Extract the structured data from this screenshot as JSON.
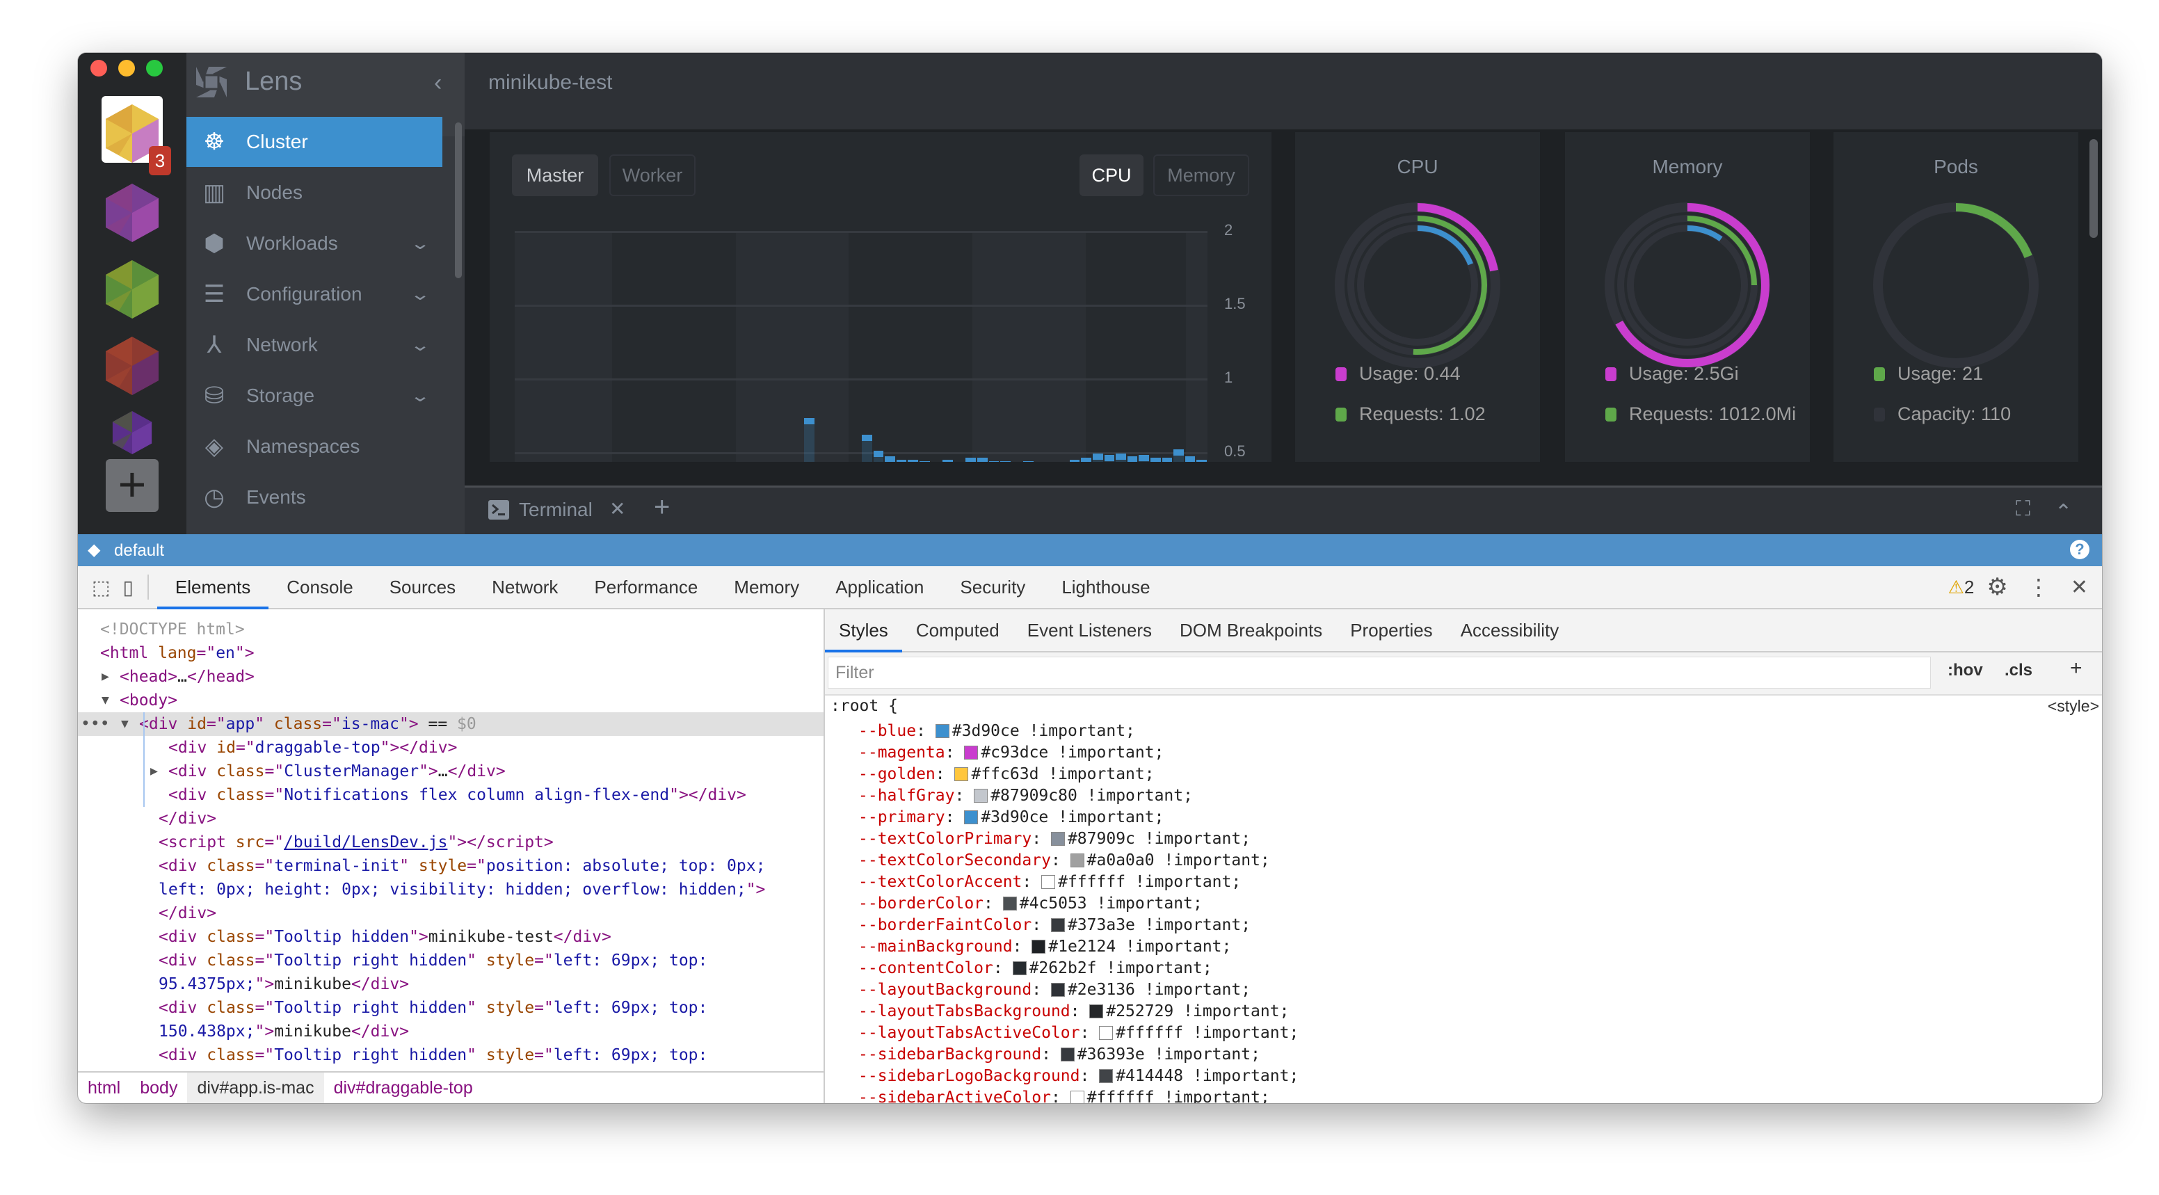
{
  "window": {
    "traffic_lights": [
      "#ff5f57",
      "#febc2e",
      "#28c840"
    ]
  },
  "clusters": {
    "badge": "3",
    "icons": [
      {
        "name": "cluster-icon-active",
        "colors": [
          "#e8c24a",
          "#c77dc2",
          "#d9a13a"
        ]
      },
      {
        "name": "cluster-icon-purple",
        "colors": [
          "#7a3f94",
          "#9c4aa8",
          "#8a3d85"
        ]
      },
      {
        "name": "cluster-icon-green",
        "colors": [
          "#5b8f3a",
          "#7aa33c",
          "#8c9a2e"
        ]
      },
      {
        "name": "cluster-icon-red",
        "colors": [
          "#8e3a30",
          "#6a2f6a",
          "#a24430"
        ]
      },
      {
        "name": "cluster-icon-violet",
        "colors": [
          "#5a2f8a",
          "#6d3aa0",
          "#4e5a3a"
        ]
      }
    ],
    "add_label": "+"
  },
  "sidebar": {
    "title": "Lens",
    "collapse": "‹",
    "items": [
      {
        "label": "Cluster",
        "icon": "helm-wheel-icon",
        "glyph": "☸",
        "active": true,
        "expandable": false
      },
      {
        "label": "Nodes",
        "icon": "nodes-icon",
        "glyph": "▥",
        "active": false,
        "expandable": false
      },
      {
        "label": "Workloads",
        "icon": "cubes-icon",
        "glyph": "⬢",
        "active": false,
        "expandable": true
      },
      {
        "label": "Configuration",
        "icon": "list-icon",
        "glyph": "☰",
        "active": false,
        "expandable": true
      },
      {
        "label": "Network",
        "icon": "network-icon",
        "glyph": "⅄",
        "active": false,
        "expandable": true
      },
      {
        "label": "Storage",
        "icon": "database-icon",
        "glyph": "⛁",
        "active": false,
        "expandable": true
      },
      {
        "label": "Namespaces",
        "icon": "layers-icon",
        "glyph": "◈",
        "active": false,
        "expandable": false
      },
      {
        "label": "Events",
        "icon": "clock-icon",
        "glyph": "◷",
        "active": false,
        "expandable": false
      }
    ]
  },
  "header": {
    "title": "minikube-test"
  },
  "chart_panel": {
    "node_tabs": [
      "Master",
      "Worker"
    ],
    "metric_tabs": [
      "CPU",
      "Memory"
    ],
    "selected_node": "Master",
    "selected_metric": "CPU"
  },
  "chart_data": {
    "type": "bar",
    "title": "",
    "xlabel": "",
    "ylabel": "",
    "y_ticks": [
      "2",
      "1.5",
      "1",
      "0.5"
    ],
    "ylim": [
      0.5,
      2
    ],
    "grid": true,
    "slots": 60,
    "points": [
      {
        "i": 25,
        "v": 0.73
      },
      {
        "i": 30,
        "v": 0.62
      },
      {
        "i": 31,
        "v": 0.51
      },
      {
        "i": 32,
        "v": 0.47
      },
      {
        "i": 33,
        "v": 0.45
      },
      {
        "i": 34,
        "v": 0.45
      },
      {
        "i": 35,
        "v": 0.44
      },
      {
        "i": 37,
        "v": 0.45
      },
      {
        "i": 39,
        "v": 0.46
      },
      {
        "i": 40,
        "v": 0.46
      },
      {
        "i": 41,
        "v": 0.44
      },
      {
        "i": 42,
        "v": 0.44
      },
      {
        "i": 44,
        "v": 0.44
      },
      {
        "i": 45,
        "v": 0.43
      },
      {
        "i": 46,
        "v": 0.43
      },
      {
        "i": 48,
        "v": 0.45
      },
      {
        "i": 49,
        "v": 0.46
      },
      {
        "i": 50,
        "v": 0.49
      },
      {
        "i": 51,
        "v": 0.48
      },
      {
        "i": 52,
        "v": 0.49
      },
      {
        "i": 53,
        "v": 0.47
      },
      {
        "i": 54,
        "v": 0.48
      },
      {
        "i": 55,
        "v": 0.46
      },
      {
        "i": 56,
        "v": 0.46
      },
      {
        "i": 57,
        "v": 0.52
      },
      {
        "i": 58,
        "v": 0.47
      },
      {
        "i": 59,
        "v": 0.45
      }
    ],
    "color": "#3d90ce"
  },
  "cards": [
    {
      "title": "CPU",
      "rings": [
        {
          "color": "#c93dce",
          "fraction": 0.22
        },
        {
          "color": "#5fa84a",
          "fraction": 0.51
        },
        {
          "color": "#3d90ce",
          "fraction": 0.19
        }
      ],
      "legend": [
        {
          "label": "Usage: 0.44",
          "color": "#c93dce"
        },
        {
          "label": "Requests: 1.02",
          "color": "#5fa84a"
        }
      ]
    },
    {
      "title": "Memory",
      "rings": [
        {
          "color": "#c93dce",
          "fraction": 0.67
        },
        {
          "color": "#5fa84a",
          "fraction": 0.25
        },
        {
          "color": "#3d90ce",
          "fraction": 0.1
        }
      ],
      "legend": [
        {
          "label": "Usage: 2.5Gi",
          "color": "#c93dce"
        },
        {
          "label": "Requests: 1012.0Mi",
          "color": "#5fa84a"
        }
      ]
    },
    {
      "title": "Pods",
      "rings": [
        {
          "color": "#5fa84a",
          "fraction": 0.19
        }
      ],
      "legend": [
        {
          "label": "Usage: 21",
          "color": "#5fa84a"
        },
        {
          "label": "Capacity: 110",
          "color": "#30333a"
        }
      ]
    }
  ],
  "terminal": {
    "tab_label": "Terminal",
    "close": "✕",
    "add": "+",
    "fullscreen": "⛶",
    "collapse": "⌃"
  },
  "statusbar": {
    "namespace": "default",
    "help": "?"
  },
  "devtools": {
    "tabs": [
      "Elements",
      "Console",
      "Sources",
      "Network",
      "Performance",
      "Memory",
      "Application",
      "Security",
      "Lighthouse"
    ],
    "active_tab": "Elements",
    "warnings": "2",
    "elements": [
      {
        "indent": 0,
        "arrow": "",
        "segs": [
          [
            "cm",
            "<!DOCTYPE html>"
          ]
        ]
      },
      {
        "indent": 0,
        "arrow": "",
        "segs": [
          [
            "tg",
            "<html "
          ],
          [
            "an",
            "lang"
          ],
          [
            "tg",
            "=\""
          ],
          [
            "av",
            "en"
          ],
          [
            "tg",
            "\">"
          ]
        ]
      },
      {
        "indent": 1,
        "arrow": "▶",
        "segs": [
          [
            "tg",
            "<head>"
          ],
          [
            "tx",
            "…"
          ],
          [
            "tg",
            "</head>"
          ]
        ]
      },
      {
        "indent": 1,
        "arrow": "▼",
        "segs": [
          [
            "tg",
            "<body>"
          ]
        ]
      },
      {
        "indent": 2,
        "arrow": "▼",
        "selected": true,
        "segs": [
          [
            "tg",
            "<div "
          ],
          [
            "an",
            "id"
          ],
          [
            "tg",
            "=\""
          ],
          [
            "av",
            "app"
          ],
          [
            "tg",
            "\" "
          ],
          [
            "an",
            "class"
          ],
          [
            "tg",
            "=\""
          ],
          [
            "av",
            "is-mac"
          ],
          [
            "tg",
            "\">"
          ],
          [
            "tx",
            " == "
          ],
          [
            "cm",
            "$0"
          ]
        ]
      },
      {
        "indent": 3.5,
        "arrow": "",
        "segs": [
          [
            "tg",
            "<div "
          ],
          [
            "an",
            "id"
          ],
          [
            "tg",
            "=\""
          ],
          [
            "av",
            "draggable-top"
          ],
          [
            "tg",
            "\"></div>"
          ]
        ]
      },
      {
        "indent": 3.5,
        "arrow": "▶",
        "segs": [
          [
            "tg",
            "<div "
          ],
          [
            "an",
            "class"
          ],
          [
            "tg",
            "=\""
          ],
          [
            "av",
            "ClusterManager"
          ],
          [
            "tg",
            "\">"
          ],
          [
            "tx",
            "…"
          ],
          [
            "tg",
            "</div>"
          ]
        ]
      },
      {
        "indent": 3.5,
        "arrow": "",
        "segs": [
          [
            "tg",
            "<div "
          ],
          [
            "an",
            "class"
          ],
          [
            "tg",
            "=\""
          ],
          [
            "av",
            "Notifications flex column align-flex-end"
          ],
          [
            "tg",
            "\"></div>"
          ]
        ]
      },
      {
        "indent": 3,
        "arrow": "",
        "segs": [
          [
            "tg",
            "</div>"
          ]
        ]
      },
      {
        "indent": 3,
        "arrow": "",
        "segs": [
          [
            "tg",
            "<script "
          ],
          [
            "an",
            "src"
          ],
          [
            "tg",
            "=\""
          ],
          [
            "ln",
            "/build/LensDev.js"
          ],
          [
            "tg",
            "\"></script>"
          ]
        ]
      },
      {
        "indent": 3,
        "arrow": "",
        "segs": [
          [
            "tg",
            "<div "
          ],
          [
            "an",
            "class"
          ],
          [
            "tg",
            "=\""
          ],
          [
            "av",
            "terminal-init"
          ],
          [
            "tg",
            "\" "
          ],
          [
            "an",
            "style"
          ],
          [
            "tg",
            "=\""
          ],
          [
            "av",
            "position: absolute; top: 0px;"
          ]
        ]
      },
      {
        "indent": 3,
        "arrow": "",
        "segs": [
          [
            "av",
            "left: 0px; height: 0px; visibility: hidden; overflow: hidden;"
          ],
          [
            "tg",
            "\">"
          ]
        ]
      },
      {
        "indent": 3,
        "arrow": "",
        "segs": [
          [
            "tg",
            "</div>"
          ]
        ]
      },
      {
        "indent": 3,
        "arrow": "",
        "segs": [
          [
            "tg",
            "<div "
          ],
          [
            "an",
            "class"
          ],
          [
            "tg",
            "=\""
          ],
          [
            "av",
            "Tooltip hidden"
          ],
          [
            "tg",
            "\">"
          ],
          [
            "tx",
            "minikube-test"
          ],
          [
            "tg",
            "</div>"
          ]
        ]
      },
      {
        "indent": 3,
        "arrow": "",
        "segs": [
          [
            "tg",
            "<div "
          ],
          [
            "an",
            "class"
          ],
          [
            "tg",
            "=\""
          ],
          [
            "av",
            "Tooltip right hidden"
          ],
          [
            "tg",
            "\" "
          ],
          [
            "an",
            "style"
          ],
          [
            "tg",
            "=\""
          ],
          [
            "av",
            "left: 69px; top:"
          ]
        ]
      },
      {
        "indent": 3,
        "arrow": "",
        "segs": [
          [
            "av",
            "95.4375px;"
          ],
          [
            "tg",
            "\">"
          ],
          [
            "tx",
            "minikube"
          ],
          [
            "tg",
            "</div>"
          ]
        ]
      },
      {
        "indent": 3,
        "arrow": "",
        "segs": [
          [
            "tg",
            "<div "
          ],
          [
            "an",
            "class"
          ],
          [
            "tg",
            "=\""
          ],
          [
            "av",
            "Tooltip right hidden"
          ],
          [
            "tg",
            "\" "
          ],
          [
            "an",
            "style"
          ],
          [
            "tg",
            "=\""
          ],
          [
            "av",
            "left: 69px; top:"
          ]
        ]
      },
      {
        "indent": 3,
        "arrow": "",
        "segs": [
          [
            "av",
            "150.438px;"
          ],
          [
            "tg",
            "\">"
          ],
          [
            "tx",
            "minikube"
          ],
          [
            "tg",
            "</div>"
          ]
        ]
      },
      {
        "indent": 3,
        "arrow": "",
        "segs": [
          [
            "tg",
            "<div "
          ],
          [
            "an",
            "class"
          ],
          [
            "tg",
            "=\""
          ],
          [
            "av",
            "Tooltip right hidden"
          ],
          [
            "tg",
            "\" "
          ],
          [
            "an",
            "style"
          ],
          [
            "tg",
            "=\""
          ],
          [
            "av",
            "left: 69px; top:"
          ]
        ]
      }
    ],
    "breadcrumb": [
      "html",
      "body",
      "div#app.is-mac",
      "div#draggable-top"
    ],
    "breadcrumb_selected": "div#app.is-mac",
    "style_tabs": [
      "Styles",
      "Computed",
      "Event Listeners",
      "DOM Breakpoints",
      "Properties",
      "Accessibility"
    ],
    "active_style_tab": "Styles",
    "filter_placeholder": "Filter",
    "hov": ":hov",
    "cls": ".cls",
    "add_rule": "+",
    "selector": ":root {",
    "source": "<style>",
    "properties": [
      {
        "name": "--blue",
        "value": "#3d90ce",
        "suffix": " !important;"
      },
      {
        "name": "--magenta",
        "value": "#c93dce",
        "suffix": " !important;"
      },
      {
        "name": "--golden",
        "value": "#ffc63d",
        "suffix": " !important;"
      },
      {
        "name": "--halfGray",
        "value": "#87909c80",
        "suffix": " !important;"
      },
      {
        "name": "--primary",
        "value": "#3d90ce",
        "suffix": " !important;"
      },
      {
        "name": "--textColorPrimary",
        "value": "#87909c",
        "suffix": " !important;"
      },
      {
        "name": "--textColorSecondary",
        "value": "#a0a0a0",
        "suffix": " !important;"
      },
      {
        "name": "--textColorAccent",
        "value": "#ffffff",
        "suffix": " !important;"
      },
      {
        "name": "--borderColor",
        "value": "#4c5053",
        "suffix": " !important;"
      },
      {
        "name": "--borderFaintColor",
        "value": "#373a3e",
        "suffix": " !important;"
      },
      {
        "name": "--mainBackground",
        "value": "#1e2124",
        "suffix": " !important;"
      },
      {
        "name": "--contentColor",
        "value": "#262b2f",
        "suffix": " !important;"
      },
      {
        "name": "--layoutBackground",
        "value": "#2e3136",
        "suffix": " !important;"
      },
      {
        "name": "--layoutTabsBackground",
        "value": "#252729",
        "suffix": " !important;"
      },
      {
        "name": "--layoutTabsActiveColor",
        "value": "#ffffff",
        "suffix": " !important;"
      },
      {
        "name": "--sidebarBackground",
        "value": "#36393e",
        "suffix": " !important;"
      },
      {
        "name": "--sidebarLogoBackground",
        "value": "#414448",
        "suffix": " !important;"
      },
      {
        "name": "--sidebarActiveColor",
        "value": "#ffffff",
        "suffix": " !important;"
      }
    ]
  }
}
